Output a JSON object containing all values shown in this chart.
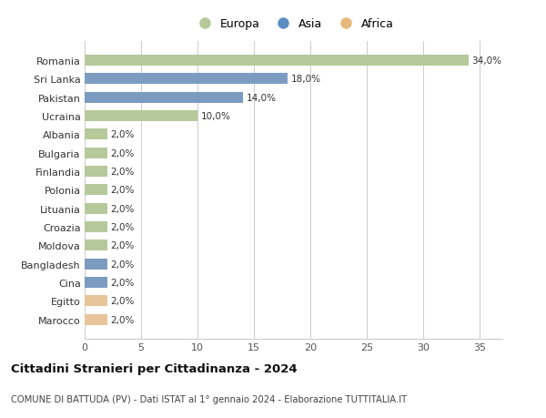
{
  "countries": [
    "Romania",
    "Sri Lanka",
    "Pakistan",
    "Ucraina",
    "Albania",
    "Bulgaria",
    "Finlandia",
    "Polonia",
    "Lituania",
    "Croazia",
    "Moldova",
    "Bangladesh",
    "Cina",
    "Egitto",
    "Marocco"
  ],
  "values": [
    34.0,
    18.0,
    14.0,
    10.0,
    2.0,
    2.0,
    2.0,
    2.0,
    2.0,
    2.0,
    2.0,
    2.0,
    2.0,
    2.0,
    2.0
  ],
  "continents": [
    "Europa",
    "Asia",
    "Asia",
    "Europa",
    "Europa",
    "Europa",
    "Europa",
    "Europa",
    "Europa",
    "Europa",
    "Europa",
    "Asia",
    "Asia",
    "Africa",
    "Africa"
  ],
  "colors": {
    "Europa": "#b5c99a",
    "Asia": "#7b9cc0",
    "Africa": "#e8c49a"
  },
  "legend_colors": {
    "Europa": "#b5c99a",
    "Asia": "#5a8fc0",
    "Africa": "#e8b87a"
  },
  "title": "Cittadini Stranieri per Cittadinanza - 2024",
  "subtitle": "COMUNE DI BATTUDA (PV) - Dati ISTAT al 1° gennaio 2024 - Elaborazione TUTTITALIA.IT",
  "xlim": [
    0,
    37
  ],
  "xticks": [
    0,
    5,
    10,
    15,
    20,
    25,
    30,
    35
  ],
  "background_color": "#ffffff",
  "grid_color": "#cccccc"
}
